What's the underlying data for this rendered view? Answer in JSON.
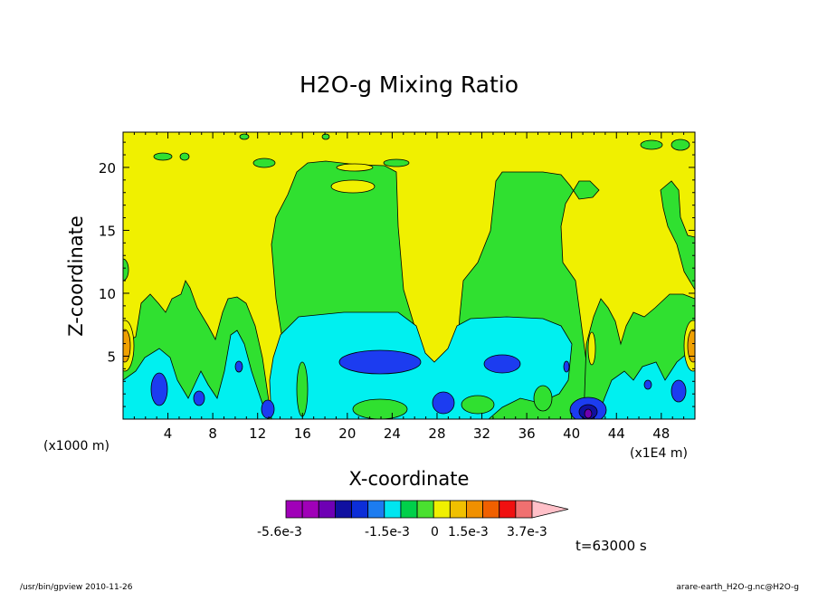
{
  "chart_data": {
    "type": "heatmap",
    "title": "H2O-g Mixing Ratio",
    "xlabel": "X-coordinate",
    "ylabel": "Z-coordinate",
    "x_unit_left": "(x1000 m)",
    "x_unit_right": "(x1E4 m)",
    "x_ticks": [
      4,
      8,
      12,
      16,
      20,
      24,
      28,
      32,
      36,
      40,
      44,
      48
    ],
    "y_ticks": [
      5,
      10,
      15,
      20
    ],
    "xlim": [
      0,
      51
    ],
    "ylim": [
      0,
      22.8
    ],
    "grid": false,
    "colorbar": {
      "labels": [
        "-5.6e-3",
        "-1.5e-3",
        "0",
        "1.5e-3",
        "3.7e-3"
      ],
      "label_values": [
        -0.0056,
        -0.0015,
        0,
        0.0015,
        0.0037
      ],
      "range": [
        -0.008,
        0.0055
      ],
      "levels": [
        {
          "from": -0.008,
          "to": -0.0056,
          "color": "#a000b8"
        },
        {
          "from": -0.0056,
          "to": -0.0035,
          "color": "#a000b8"
        },
        {
          "from": -0.0035,
          "to": -0.0026,
          "color": "#6e00b4"
        },
        {
          "from": -0.0026,
          "to": -0.002,
          "color": "#1010a0"
        },
        {
          "from": -0.002,
          "to": -0.0015,
          "color": "#0c2ed8"
        },
        {
          "from": -0.0015,
          "to": -0.001,
          "color": "#1c7cf0"
        },
        {
          "from": -0.001,
          "to": -0.0005,
          "color": "#00e6f0"
        },
        {
          "from": -0.0005,
          "to": 0,
          "color": "#00d04a"
        },
        {
          "from": 0,
          "to": 0.0005,
          "color": "#4ae030"
        },
        {
          "from": 0.0005,
          "to": 0.001,
          "color": "#f0f000"
        },
        {
          "from": 0.001,
          "to": 0.0015,
          "color": "#f0c000"
        },
        {
          "from": 0.0015,
          "to": 0.0022,
          "color": "#f09000"
        },
        {
          "from": 0.0022,
          "to": 0.003,
          "color": "#f06000"
        },
        {
          "from": 0.003,
          "to": 0.0037,
          "color": "#f01010"
        },
        {
          "from": 0.0037,
          "to": 0.0044,
          "color": "#f07070"
        }
      ],
      "overflow_color": "#ffc0c8"
    }
  },
  "annotations": {
    "time": "t=63000 s",
    "footer_left": "/usr/bin/gpview  2010-11-26",
    "footer_right": "arare-earth_H2O-g.nc@H2O-g"
  },
  "colors": {
    "yellow": "#f0f000",
    "green": "#30e030",
    "cyan": "#00f0f0",
    "blue": "#1c3cf0",
    "navy": "#1010a0",
    "violet": "#7000b0",
    "orange": "#f0a000",
    "frame": "#000000"
  }
}
